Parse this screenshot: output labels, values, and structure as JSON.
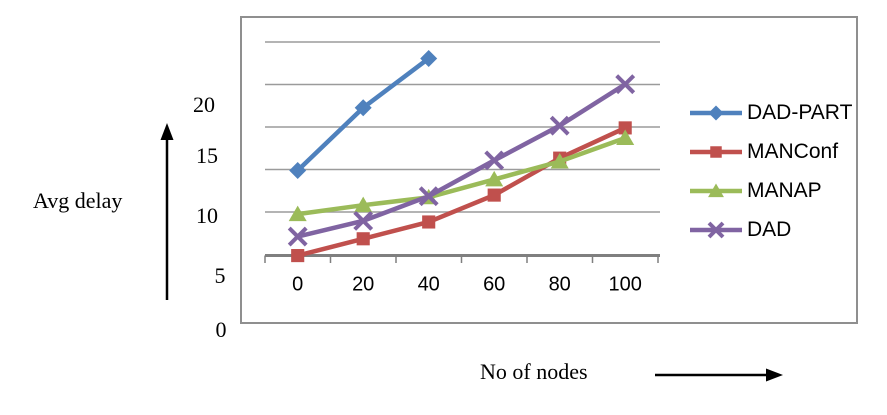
{
  "chart_data": {
    "type": "line",
    "title": "",
    "ylabel": "Avg delay",
    "xlabel": "No of nodes",
    "x": [
      0,
      20,
      40,
      60,
      80,
      100
    ],
    "x_tick_labels": [
      "0",
      "20",
      "40",
      "60",
      "80",
      "100"
    ],
    "y_ticks": [
      20,
      15,
      10,
      5,
      0
    ],
    "y_tick_labels": [
      "20",
      "15",
      "10",
      "5",
      "0"
    ],
    "ylim": [
      0,
      25
    ],
    "grid": "horizontal",
    "legend_position": "right",
    "axis_color": "#7f7f7f",
    "grid_color": "#9b9b9b",
    "border_color": "#8f8f8f",
    "series": [
      {
        "name": "DAD-PART",
        "color": "#4F81BD",
        "marker": "diamond",
        "x": [
          0,
          20,
          40
        ],
        "values": [
          14.2,
          19.8,
          24.2
        ]
      },
      {
        "name": "MANConf",
        "color": "#C0504D",
        "marker": "square",
        "x": [
          0,
          20,
          40,
          60,
          80,
          100
        ],
        "values": [
          6.6,
          8.1,
          9.6,
          12.0,
          15.3,
          18.0
        ]
      },
      {
        "name": "MANAP",
        "color": "#9BBB59",
        "marker": "triangle",
        "x": [
          0,
          20,
          40,
          60,
          80,
          100
        ],
        "values": [
          10.3,
          11.1,
          11.8,
          13.4,
          15.0,
          17.1
        ]
      },
      {
        "name": "DAD",
        "color": "#8064A2",
        "marker": "x",
        "x": [
          0,
          20,
          40,
          60,
          80,
          100
        ],
        "values": [
          8.3,
          9.7,
          11.9,
          15.1,
          18.2,
          21.9
        ]
      }
    ]
  }
}
